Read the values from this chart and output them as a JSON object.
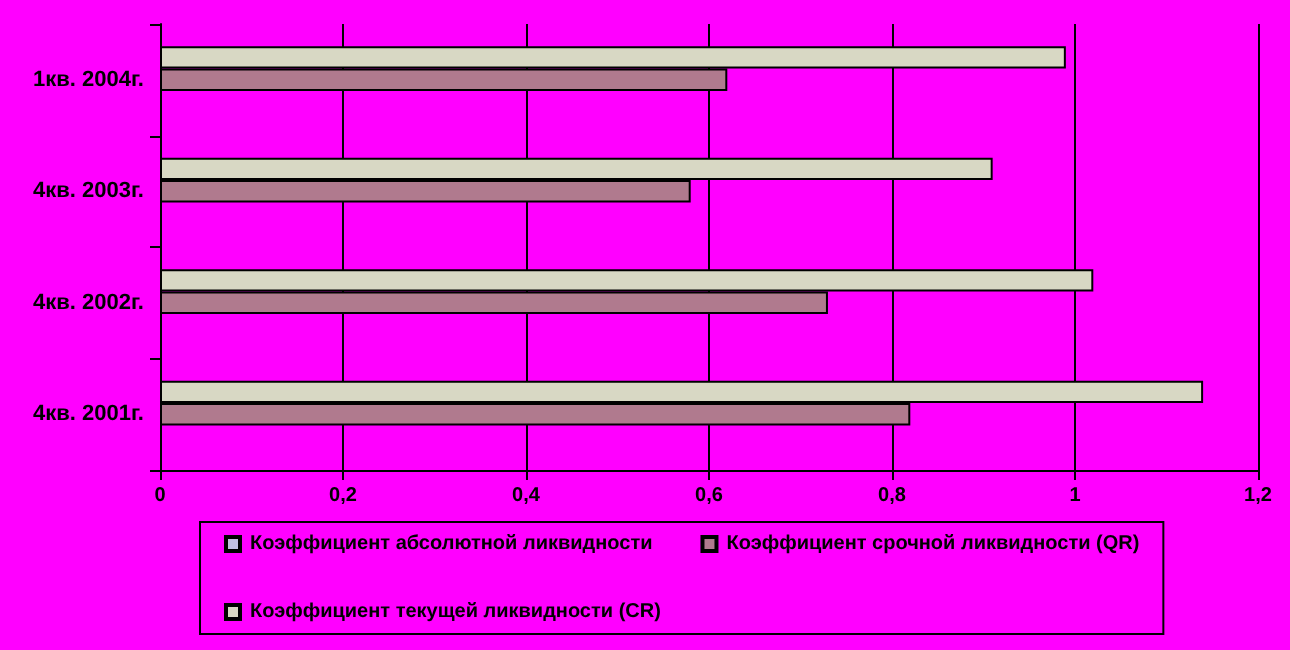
{
  "chart_data": {
    "type": "bar",
    "orientation": "horizontal",
    "categories": [
      "1кв. 2004г.",
      "4кв. 2003г.",
      "4кв. 2002г.",
      "4кв. 2001г."
    ],
    "series": [
      {
        "name": "Коэффициент абсолютной ликвидности",
        "color": "#c0c0e0",
        "values": [
          null,
          null,
          null,
          null
        ]
      },
      {
        "name": "Коэффициент срочной ликвидности (QR)",
        "color": "#b07a8e",
        "values": [
          0.62,
          0.58,
          0.73,
          0.82
        ]
      },
      {
        "name": "Коэффициент текущей ликвидности (CR)",
        "color": "#d8d8c4",
        "values": [
          0.99,
          0.91,
          1.02,
          1.14
        ]
      }
    ],
    "xlim": [
      0,
      1.2
    ],
    "xticks": [
      {
        "value": 0,
        "label": "0"
      },
      {
        "value": 0.2,
        "label": "0,2"
      },
      {
        "value": 0.4,
        "label": "0,4"
      },
      {
        "value": 0.6,
        "label": "0,6"
      },
      {
        "value": 0.8,
        "label": "0,8"
      },
      {
        "value": 1,
        "label": "1"
      },
      {
        "value": 1.2,
        "label": "1,2"
      }
    ],
    "grid": "x",
    "legend": "bottom"
  }
}
